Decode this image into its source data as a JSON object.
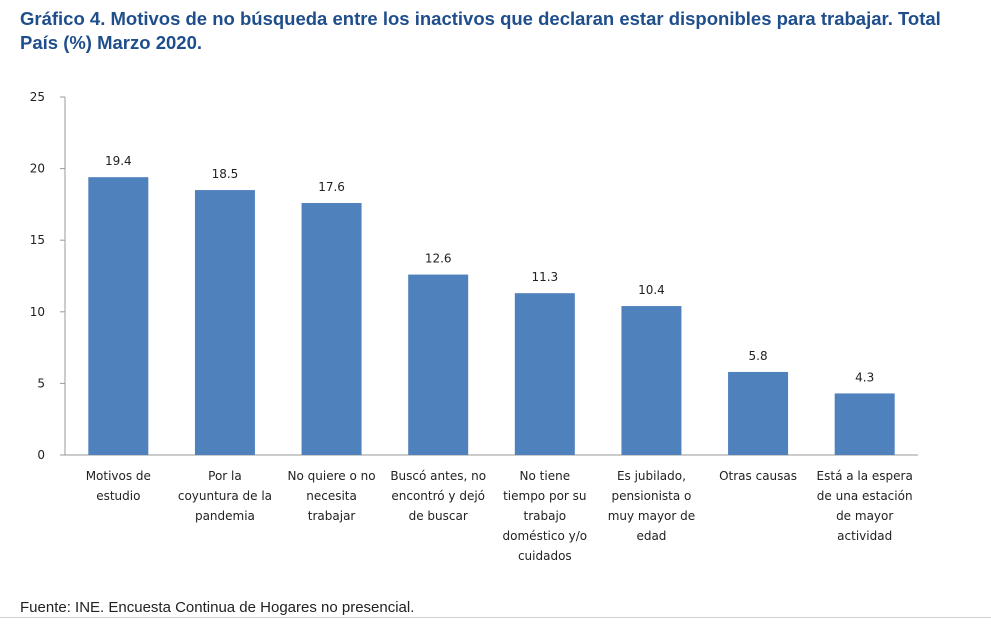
{
  "title": "Gráfico 4. Motivos de no búsqueda entre los inactivos que declaran estar disponibles para trabajar. Total País (%) Marzo 2020.",
  "source": "Fuente: INE. Encuesta Continua de Hogares no presencial.",
  "colors": {
    "bar": "#4f81bd",
    "title": "#1f4e8c"
  },
  "chart_data": {
    "type": "bar",
    "title": "",
    "xlabel": "",
    "ylabel": "",
    "ylim": [
      0,
      25
    ],
    "yticks": [
      0,
      5,
      10,
      15,
      20,
      25
    ],
    "grid": false,
    "categories": [
      [
        "Motivos de",
        "estudio"
      ],
      [
        "Por la",
        "coyuntura de la",
        "pandemia"
      ],
      [
        "No quiere o no",
        "necesita",
        "trabajar"
      ],
      [
        "Buscó antes, no",
        "encontró y dejó",
        "de buscar"
      ],
      [
        "No tiene",
        "tiempo por su",
        "trabajo",
        "doméstico y/o",
        "cuidados"
      ],
      [
        "Es jubilado,",
        "pensionista o",
        "muy mayor de",
        "edad"
      ],
      [
        "Otras causas"
      ],
      [
        "Está a la espera",
        "de una estación",
        "de mayor",
        "actividad"
      ]
    ],
    "values": [
      19.4,
      18.5,
      17.6,
      12.6,
      11.3,
      10.4,
      5.8,
      4.3
    ],
    "data_labels": [
      "19.4",
      "18.5",
      "17.6",
      "12.6",
      "11.3",
      "10.4",
      "5.8",
      "4.3"
    ]
  }
}
